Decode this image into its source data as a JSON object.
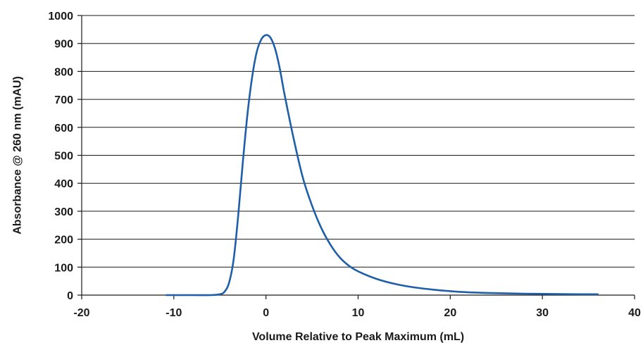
{
  "chart_data": {
    "type": "line",
    "title": "",
    "xlabel": "Volume Relative to Peak Maximum (mL)",
    "ylabel": "Absorbance @ 260 nm (mAU)",
    "xlim": [
      -20,
      40
    ],
    "ylim": [
      0,
      1000
    ],
    "x_ticks": [
      "-20",
      "-10",
      "0",
      "10",
      "20",
      "30",
      "40"
    ],
    "y_ticks": [
      "0",
      "100",
      "200",
      "300",
      "400",
      "500",
      "600",
      "700",
      "800",
      "900",
      "1000"
    ],
    "grid": "horizontal",
    "legend": "none",
    "series_color": "#1f5fa8",
    "series": [
      {
        "x": [
          -10.8,
          -8,
          -6,
          -5,
          -4.5,
          -4,
          -3.5,
          -3,
          -2.5,
          -2,
          -1.5,
          -1,
          -0.5,
          0,
          0.5,
          1,
          1.5,
          2,
          3,
          4,
          5,
          6,
          7,
          8,
          9,
          10,
          12,
          14,
          16,
          18,
          20,
          22,
          25,
          28,
          31,
          34,
          36
        ],
        "values": [
          0,
          0,
          0,
          3,
          12,
          45,
          130,
          290,
          480,
          650,
          780,
          870,
          915,
          930,
          920,
          880,
          810,
          720,
          560,
          420,
          320,
          240,
          180,
          135,
          105,
          85,
          58,
          40,
          28,
          20,
          14,
          10,
          7,
          5,
          4,
          3,
          3
        ]
      }
    ]
  }
}
